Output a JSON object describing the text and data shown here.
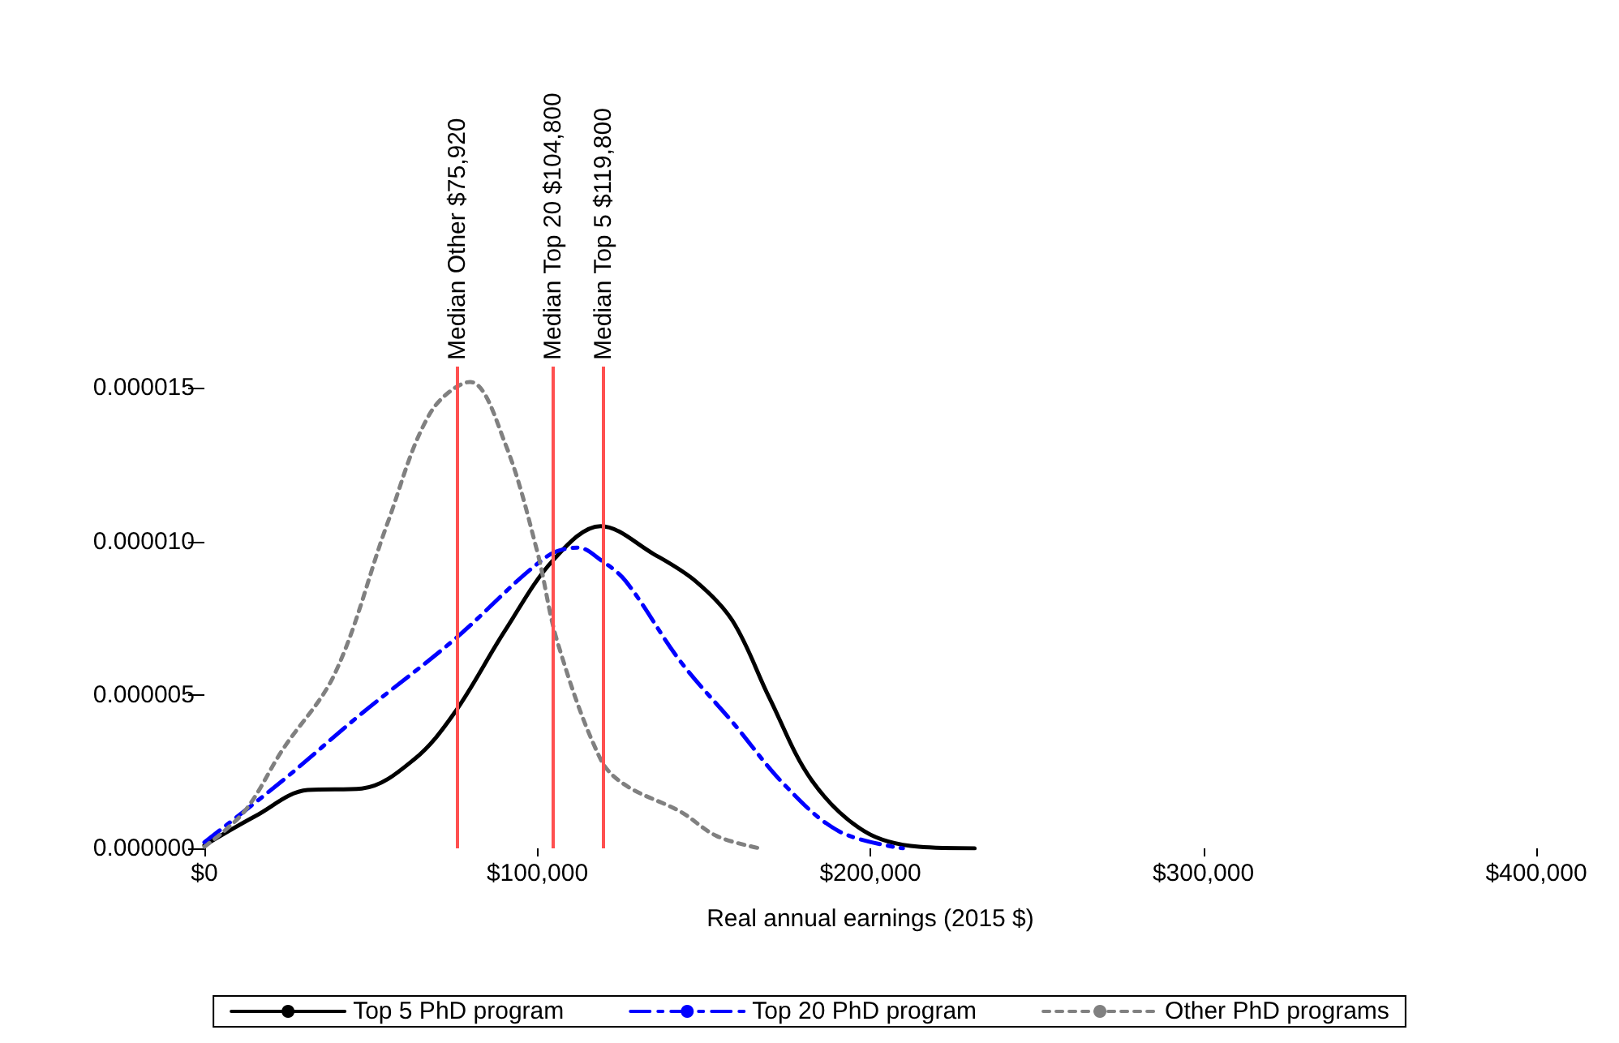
{
  "chart_data": {
    "type": "line",
    "xlabel": "Real annual earnings (2015 $)",
    "xlim": [
      0,
      400000
    ],
    "xticks": [
      {
        "value": 0,
        "label": "$0"
      },
      {
        "value": 100000,
        "label": "$100,000"
      },
      {
        "value": 200000,
        "label": "$200,000"
      },
      {
        "value": 300000,
        "label": "$300,000"
      },
      {
        "value": 400000,
        "label": "$400,000"
      }
    ],
    "ylim": [
      0,
      1.57e-05
    ],
    "yticks": [
      {
        "value": 0,
        "label": "0.000000"
      },
      {
        "value": 5e-06,
        "label": "0.000005"
      },
      {
        "value": 1e-05,
        "label": "0.000010"
      },
      {
        "value": 1.5e-05,
        "label": "0.000015"
      }
    ],
    "grid": false,
    "legend": "bottom",
    "marker": "none",
    "series": [
      {
        "name": "Top 5 PhD program",
        "color": "#000000",
        "line_style": "solid",
        "x": [
          0,
          15300,
          31000,
          47300,
          63000,
          75000,
          90300,
          104800,
          119000,
          134800,
          147600,
          158700,
          169700,
          182500,
          198300,
          214600,
          231300
        ],
        "values": [
          1e-07,
          1.05e-06,
          1.9e-06,
          1.95e-06,
          2.9e-06,
          4.4e-06,
          7.1e-06,
          9.4e-06,
          1.05e-05,
          9.6e-06,
          8.7e-06,
          7.4e-06,
          4.9e-06,
          2.2e-06,
          5.5e-07,
          5e-08,
          0
        ]
      },
      {
        "name": "Top 20 PhD program",
        "color": "#0000ff",
        "line_style": "dashed",
        "x": [
          0,
          23400,
          47300,
          75000,
          102700,
          112300,
          119000,
          126600,
          142900,
          158700,
          174400,
          190700,
          209800
        ],
        "values": [
          2e-07,
          2.2e-06,
          4.4e-06,
          6.8e-06,
          9.5e-06,
          9.8e-06,
          9.4e-06,
          8.7e-06,
          6.1e-06,
          4.1e-06,
          2.05e-06,
          5.5e-07,
          0
        ]
      },
      {
        "name": "Other PhD programs",
        "color": "#808080",
        "line_style": "dotted",
        "x": [
          0,
          12000,
          23400,
          39200,
          55000,
          67900,
          79800,
          90300,
          99900,
          106100,
          119000,
          126600,
          142900,
          153900,
          166800
        ],
        "values": [
          5e-08,
          1.2e-06,
          3.2e-06,
          5.7e-06,
          1.06e-05,
          1.42e-05,
          1.52e-05,
          1.32e-05,
          9.7e-06,
          6.7e-06,
          2.9e-06,
          2.05e-06,
          1.2e-06,
          4e-07,
          0
        ]
      }
    ],
    "ref_lines": [
      {
        "axis": "x",
        "value": 75920,
        "label": "Median Other $75,920",
        "color": "#ff5050"
      },
      {
        "axis": "x",
        "value": 104800,
        "label": "Median Top 20 $104,800",
        "color": "#ff5050"
      },
      {
        "axis": "x",
        "value": 119800,
        "label": "Median Top 5 $119,800",
        "color": "#ff5050"
      }
    ]
  }
}
